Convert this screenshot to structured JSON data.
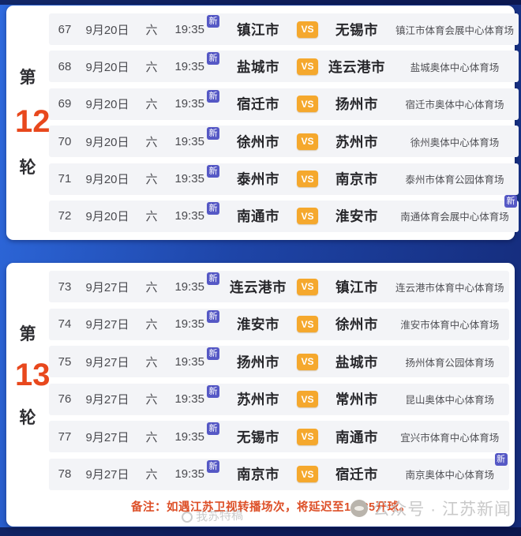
{
  "badges": {
    "new_label": "新",
    "vs_label": "VS",
    "new_color": "#5558c5",
    "vs_color": "#f5a82d"
  },
  "colors": {
    "frame_blue": "#2e6ade",
    "frame_navy": "#142a78",
    "round_number_accent": "#e8481d",
    "note_red": "#dd4f27"
  },
  "footer": {
    "note": "备注：如遇江苏卫视转播场次，将延迟至19:35开球。",
    "watermark": "我苏特稿",
    "account": "公众号 · 江苏新闻"
  },
  "rounds": [
    {
      "prefix": "第",
      "number": "12",
      "suffix": "轮",
      "matches": [
        {
          "no": "67",
          "date": "9月20日",
          "day": "六",
          "time": "19:35",
          "home": "镇江市",
          "away": "无锡市",
          "venue": "镇江市体育会展中心体育场"
        },
        {
          "no": "68",
          "date": "9月20日",
          "day": "六",
          "time": "19:35",
          "home": "盐城市",
          "away": "连云港市",
          "venue": "盐城奥体中心体育场"
        },
        {
          "no": "69",
          "date": "9月20日",
          "day": "六",
          "time": "19:35",
          "home": "宿迁市",
          "away": "扬州市",
          "venue": "宿迁市奥体中心体育场"
        },
        {
          "no": "70",
          "date": "9月20日",
          "day": "六",
          "time": "19:35",
          "home": "徐州市",
          "away": "苏州市",
          "venue": "徐州奥体中心体育场"
        },
        {
          "no": "71",
          "date": "9月20日",
          "day": "六",
          "time": "19:35",
          "home": "泰州市",
          "away": "南京市",
          "venue": "泰州市体育公园体育场"
        },
        {
          "no": "72",
          "date": "9月20日",
          "day": "六",
          "time": "19:35",
          "home": "南通市",
          "away": "淮安市",
          "venue": "南通体育会展中心体育场"
        }
      ]
    },
    {
      "prefix": "第",
      "number": "13",
      "suffix": "轮",
      "matches": [
        {
          "no": "73",
          "date": "9月27日",
          "day": "六",
          "time": "19:35",
          "home": "连云港市",
          "away": "镇江市",
          "venue": "连云港市体育中心体育场"
        },
        {
          "no": "74",
          "date": "9月27日",
          "day": "六",
          "time": "19:35",
          "home": "淮安市",
          "away": "徐州市",
          "venue": "淮安市体育中心体育场"
        },
        {
          "no": "75",
          "date": "9月27日",
          "day": "六",
          "time": "19:35",
          "home": "扬州市",
          "away": "盐城市",
          "venue": "扬州体育公园体育场"
        },
        {
          "no": "76",
          "date": "9月27日",
          "day": "六",
          "time": "19:35",
          "home": "苏州市",
          "away": "常州市",
          "venue": "昆山奥体中心体育场"
        },
        {
          "no": "77",
          "date": "9月27日",
          "day": "六",
          "time": "19:35",
          "home": "无锡市",
          "away": "南通市",
          "venue": "宜兴市体育中心体育场"
        },
        {
          "no": "78",
          "date": "9月27日",
          "day": "六",
          "time": "19:35",
          "home": "南京市",
          "away": "宿迁市",
          "venue": "南京奥体中心体育场"
        }
      ]
    }
  ]
}
